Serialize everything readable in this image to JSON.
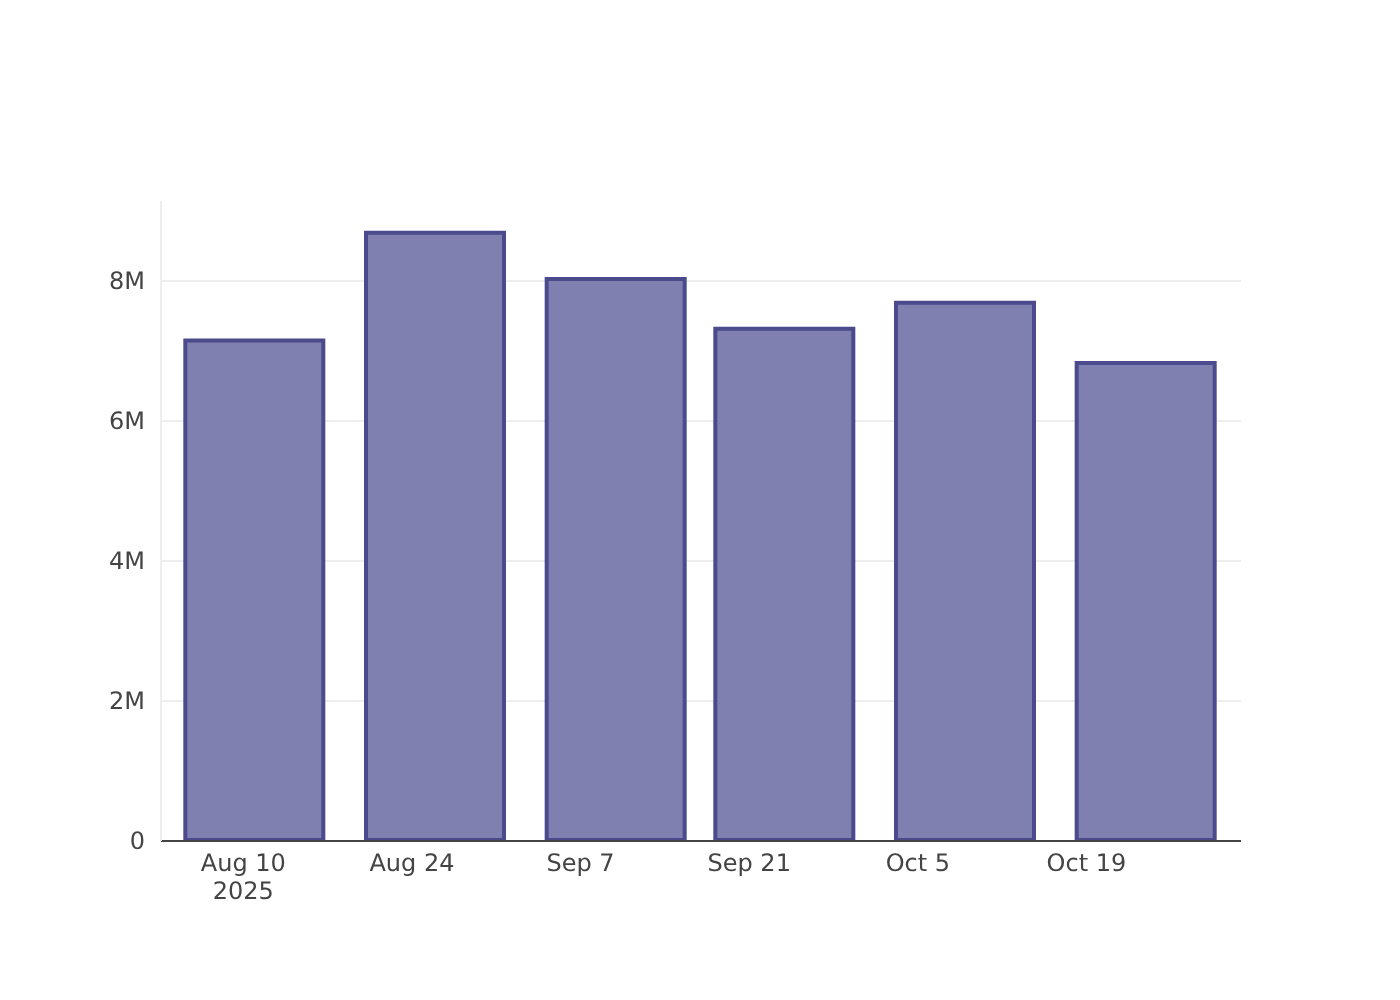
{
  "chart_data": {
    "type": "bar",
    "x": [
      "2025-08-11",
      "2025-08-26",
      "2025-09-10",
      "2025-09-24",
      "2025-10-09",
      "2025-10-24"
    ],
    "values": [
      7140000,
      8680000,
      8020000,
      7310000,
      7680000,
      6820000
    ],
    "color": "#8080b0",
    "xlim": [
      "2025-08-04",
      "2025-10-31"
    ],
    "xticks": [
      {
        "value": "2025-08-10",
        "label": "Aug 10\n2025"
      },
      {
        "value": "2025-08-24",
        "label": "Aug 24"
      },
      {
        "value": "2025-09-07",
        "label": "Sep 7"
      },
      {
        "value": "2025-09-21",
        "label": "Sep 21"
      },
      {
        "value": "2025-10-05",
        "label": "Oct 5"
      },
      {
        "value": "2025-10-19",
        "label": "Oct 19"
      }
    ],
    "ylim": [
      0,
      9150000
    ],
    "yticks": [
      0,
      {
        "value": 2000000,
        "label": "2M"
      },
      {
        "value": 4000000,
        "label": "4M"
      },
      {
        "value": 6000000,
        "label": "6M"
      },
      {
        "value": 8000000,
        "label": "8M"
      }
    ],
    "grid": "y"
  }
}
